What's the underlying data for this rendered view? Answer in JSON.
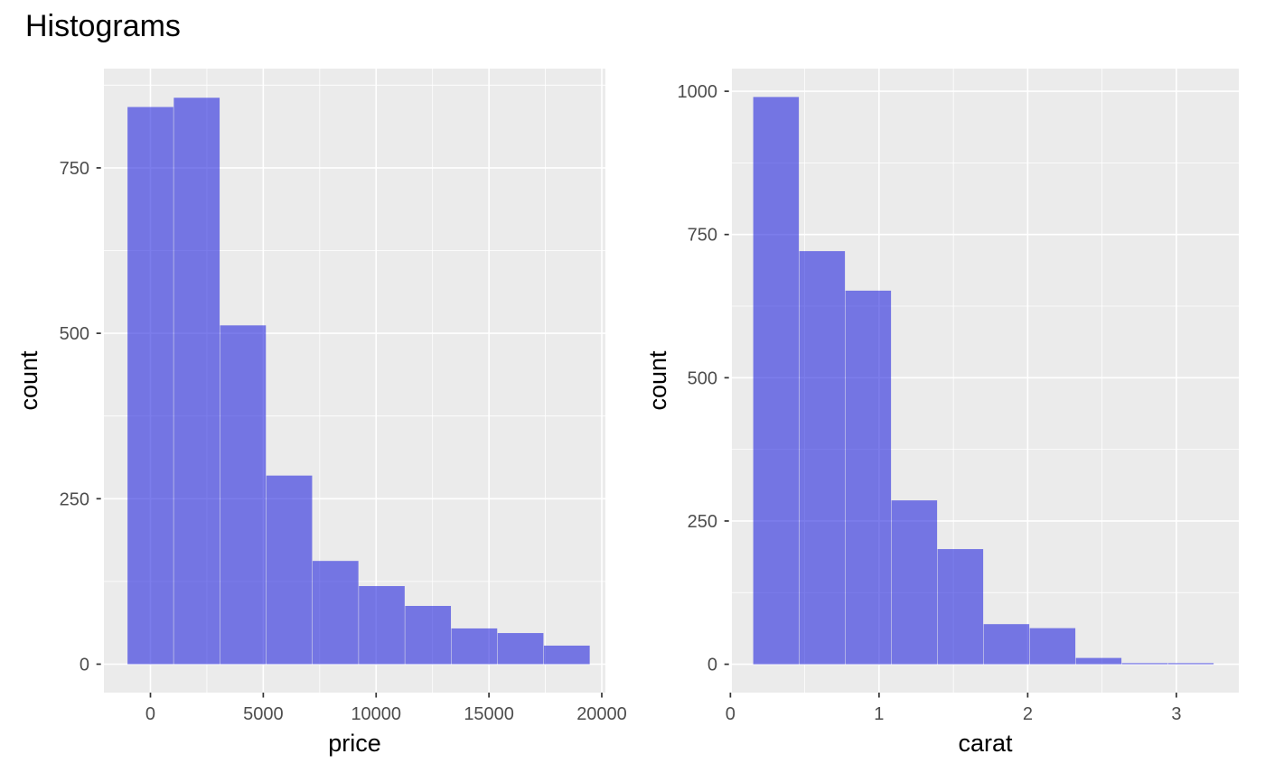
{
  "page_title": "Histograms",
  "colors": {
    "background": "#FFFFFF",
    "panel_bg": "#EBEBEB",
    "grid_major": "#FFFFFF",
    "grid_minor": "#FFFFFF",
    "bar_fill": "#2B2DDF",
    "bar_fill_opacity": 0.62,
    "tick_mark": "#333333",
    "tick_label": "#4D4D4D",
    "axis_title": "#000000",
    "title": "#000000"
  },
  "chart_data": [
    {
      "type": "bar",
      "subtype": "histogram",
      "name": "price-histogram",
      "xlabel": "price",
      "ylabel": "count",
      "bin_start": -1025,
      "bin_width": 2050,
      "counts": [
        842,
        856,
        512,
        285,
        156,
        118,
        88,
        54,
        47,
        28
      ],
      "x_tick_values": [
        0,
        5000,
        10000,
        15000,
        20000
      ],
      "x_tick_labels": [
        "0",
        "5000",
        "10000",
        "15000",
        "20000"
      ],
      "y_tick_values": [
        0,
        250,
        500,
        750
      ],
      "y_tick_labels": [
        "0",
        "250",
        "500",
        "750"
      ],
      "x_minor": [
        2500,
        7500,
        12500,
        17500
      ],
      "y_minor": [
        125,
        375,
        625,
        875
      ],
      "xlim": [
        -2062,
        20160
      ],
      "ylim": [
        -43,
        900
      ],
      "grid": true,
      "legend": "none"
    },
    {
      "type": "bar",
      "subtype": "histogram",
      "name": "carat-histogram",
      "xlabel": "carat",
      "ylabel": "count",
      "bin_start": 0.152,
      "bin_width": 0.31,
      "counts": [
        990,
        721,
        652,
        286,
        201,
        70,
        63,
        11,
        2,
        2
      ],
      "x_tick_values": [
        0,
        1,
        2,
        3
      ],
      "x_tick_labels": [
        "0",
        "1",
        "2",
        "3"
      ],
      "y_tick_values": [
        0,
        250,
        500,
        750,
        1000
      ],
      "y_tick_labels": [
        "0",
        "250",
        "500",
        "750",
        "1000"
      ],
      "x_minor": [
        0.5,
        1.5,
        2.5
      ],
      "y_minor": [
        125,
        375,
        625,
        875
      ],
      "xlim": [
        0.01,
        3.42
      ],
      "ylim": [
        -49.5,
        1039.5
      ],
      "grid": true,
      "legend": "none"
    }
  ]
}
